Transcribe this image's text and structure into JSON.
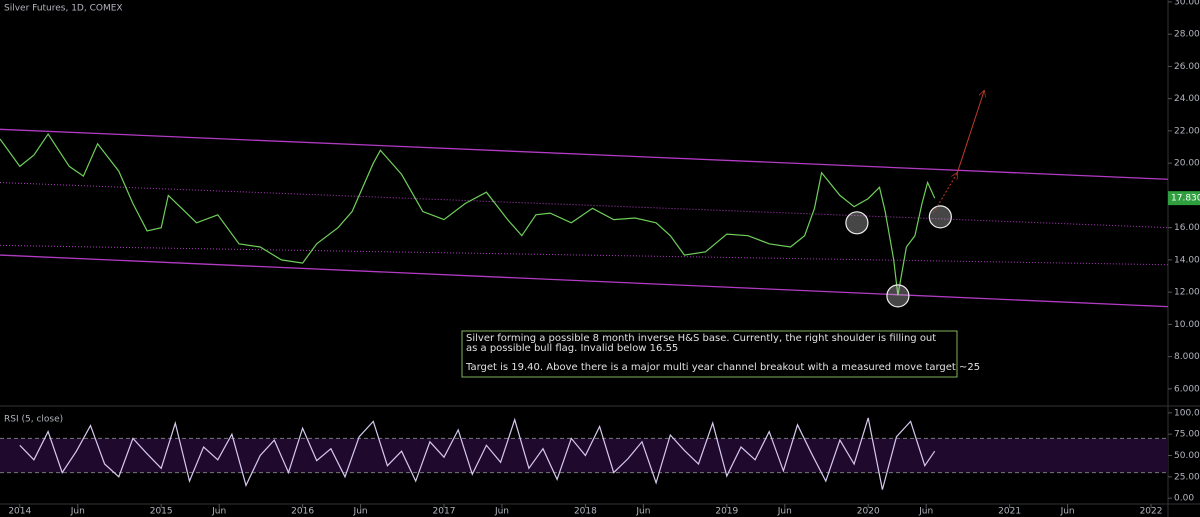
{
  "chart_data": [
    {
      "type": "line",
      "title": "Silver Futures, 1D, COMEX",
      "color": "#6fcf5a",
      "x": [
        2013.86,
        2014.0,
        2014.1,
        2014.2,
        2014.35,
        2014.45,
        2014.55,
        2014.7,
        2014.8,
        2014.9,
        2015.0,
        2015.05,
        2015.25,
        2015.4,
        2015.55,
        2015.7,
        2015.85,
        2016.0,
        2016.1,
        2016.25,
        2016.35,
        2016.5,
        2016.55,
        2016.7,
        2016.85,
        2017.0,
        2017.15,
        2017.3,
        2017.45,
        2017.55,
        2017.65,
        2017.75,
        2017.9,
        2018.05,
        2018.2,
        2018.35,
        2018.5,
        2018.6,
        2018.7,
        2018.85,
        2019.0,
        2019.15,
        2019.3,
        2019.45,
        2019.55,
        2019.62,
        2019.67,
        2019.8,
        2019.9,
        2020.0,
        2020.08,
        2020.12,
        2020.18,
        2020.21,
        2020.27,
        2020.33,
        2020.38,
        2020.42,
        2020.47
      ],
      "values": [
        21.5,
        19.8,
        20.5,
        21.8,
        19.8,
        19.2,
        21.2,
        19.5,
        17.5,
        15.8,
        16.0,
        18.0,
        16.3,
        16.8,
        15.0,
        14.8,
        14.0,
        13.8,
        15.0,
        16.0,
        17.0,
        20.0,
        20.8,
        19.3,
        17.0,
        16.5,
        17.5,
        18.2,
        16.5,
        15.5,
        16.8,
        16.9,
        16.3,
        17.2,
        16.5,
        16.6,
        16.3,
        15.5,
        14.3,
        14.5,
        15.6,
        15.5,
        15.0,
        14.8,
        15.5,
        17.2,
        19.4,
        18.0,
        17.3,
        17.8,
        18.5,
        17.0,
        14.0,
        11.8,
        14.8,
        15.5,
        17.5,
        18.8,
        17.83
      ],
      "last_price_label": "17.830",
      "xlim": [
        2013.86,
        2022.12
      ],
      "ylim": [
        5.0,
        30.12
      ],
      "yticks": [
        {
          "value": 6,
          "label": "6.000"
        },
        {
          "value": 8,
          "label": "8.000"
        },
        {
          "value": 10,
          "label": "10.000"
        },
        {
          "value": 12,
          "label": "12.000"
        },
        {
          "value": 14,
          "label": "14.000"
        },
        {
          "value": 16,
          "label": "16.000"
        },
        {
          "value": 18,
          "label": "18.000"
        },
        {
          "value": 20,
          "label": "20.000"
        },
        {
          "value": 22,
          "label": "22.000"
        },
        {
          "value": 24,
          "label": "24.000"
        },
        {
          "value": 26,
          "label": "26.000"
        },
        {
          "value": 28,
          "label": "28.000"
        },
        {
          "value": 30,
          "label": "30.000"
        }
      ],
      "channel_color": "#b23bc4",
      "channel": [
        {
          "style": "solid",
          "y": [
            22.1,
            19.0
          ]
        },
        {
          "style": "dotted",
          "y": [
            18.8,
            16.0
          ]
        },
        {
          "style": "dotted",
          "y": [
            14.9,
            13.7
          ]
        },
        {
          "style": "solid",
          "y": [
            14.3,
            11.1
          ]
        }
      ],
      "highlights": [
        {
          "x": 2019.92,
          "y": 16.3
        },
        {
          "x": 2020.21,
          "y": 11.77
        },
        {
          "x": 2020.51,
          "y": 16.67
        }
      ],
      "target_arrow": {
        "color": "#c0392b",
        "x": [
          2020.46,
          2020.63,
          2020.82
        ],
        "y": [
          16.9,
          19.4,
          24.5
        ]
      },
      "annotation": [
        "Silver forming a possible 8 month inverse H&S base. Currently, the right shoulder is filling out",
        "as a possible bull flag. Invalid below 16.55",
        "Target is 19.40. Above there is a major multi year channel breakout with a measured move target ~25"
      ]
    },
    {
      "type": "line",
      "title": "RSI (5, close)",
      "color": "#d8c8f0",
      "band": [
        30,
        70
      ],
      "x": [
        2014.0,
        2014.1,
        2014.2,
        2014.3,
        2014.4,
        2014.5,
        2014.6,
        2014.7,
        2014.8,
        2014.9,
        2015.0,
        2015.1,
        2015.2,
        2015.3,
        2015.4,
        2015.5,
        2015.6,
        2015.7,
        2015.8,
        2015.9,
        2016.0,
        2016.1,
        2016.2,
        2016.3,
        2016.4,
        2016.5,
        2016.6,
        2016.7,
        2016.8,
        2016.9,
        2017.0,
        2017.1,
        2017.2,
        2017.3,
        2017.4,
        2017.5,
        2017.6,
        2017.7,
        2017.8,
        2017.9,
        2018.0,
        2018.1,
        2018.2,
        2018.3,
        2018.4,
        2018.5,
        2018.6,
        2018.7,
        2018.8,
        2018.9,
        2019.0,
        2019.1,
        2019.2,
        2019.3,
        2019.4,
        2019.5,
        2019.6,
        2019.7,
        2019.8,
        2019.9,
        2020.0,
        2020.1,
        2020.2,
        2020.3,
        2020.4,
        2020.47
      ],
      "values": [
        62,
        45,
        78,
        30,
        55,
        85,
        40,
        25,
        70,
        52,
        35,
        88,
        20,
        60,
        45,
        75,
        15,
        50,
        68,
        30,
        82,
        44,
        58,
        25,
        72,
        90,
        38,
        55,
        20,
        66,
        48,
        80,
        28,
        62,
        42,
        92,
        35,
        58,
        22,
        70,
        50,
        84,
        30,
        46,
        66,
        18,
        74,
        56,
        40,
        88,
        26,
        60,
        45,
        78,
        32,
        86,
        52,
        20,
        68,
        40,
        94,
        10,
        72,
        90,
        38,
        55
      ],
      "xlim": [
        2013.86,
        2022.12
      ],
      "ylim": [
        -8,
        108
      ],
      "yticks": [
        {
          "value": 0,
          "label": "0.00"
        },
        {
          "value": 25,
          "label": "25.00"
        },
        {
          "value": 50,
          "label": "50.00"
        },
        {
          "value": 75,
          "label": "75.00"
        },
        {
          "value": 100,
          "label": "100.00"
        }
      ],
      "xticks": [
        {
          "value": 2014,
          "label": "2014"
        },
        {
          "value": 2014.41,
          "label": "Jun"
        },
        {
          "value": 2015,
          "label": "2015"
        },
        {
          "value": 2015.41,
          "label": "Jun"
        },
        {
          "value": 2016,
          "label": "2016"
        },
        {
          "value": 2016.41,
          "label": "Jun"
        },
        {
          "value": 2017,
          "label": "2017"
        },
        {
          "value": 2017.41,
          "label": "Jun"
        },
        {
          "value": 2018,
          "label": "2018"
        },
        {
          "value": 2018.41,
          "label": "Jun"
        },
        {
          "value": 2019,
          "label": "2019"
        },
        {
          "value": 2019.41,
          "label": "Jun"
        },
        {
          "value": 2020,
          "label": "2020"
        },
        {
          "value": 2020.41,
          "label": "Jun"
        },
        {
          "value": 2021,
          "label": "2021"
        },
        {
          "value": 2021.41,
          "label": "Jun"
        },
        {
          "value": 2022,
          "label": "2022"
        }
      ]
    }
  ]
}
